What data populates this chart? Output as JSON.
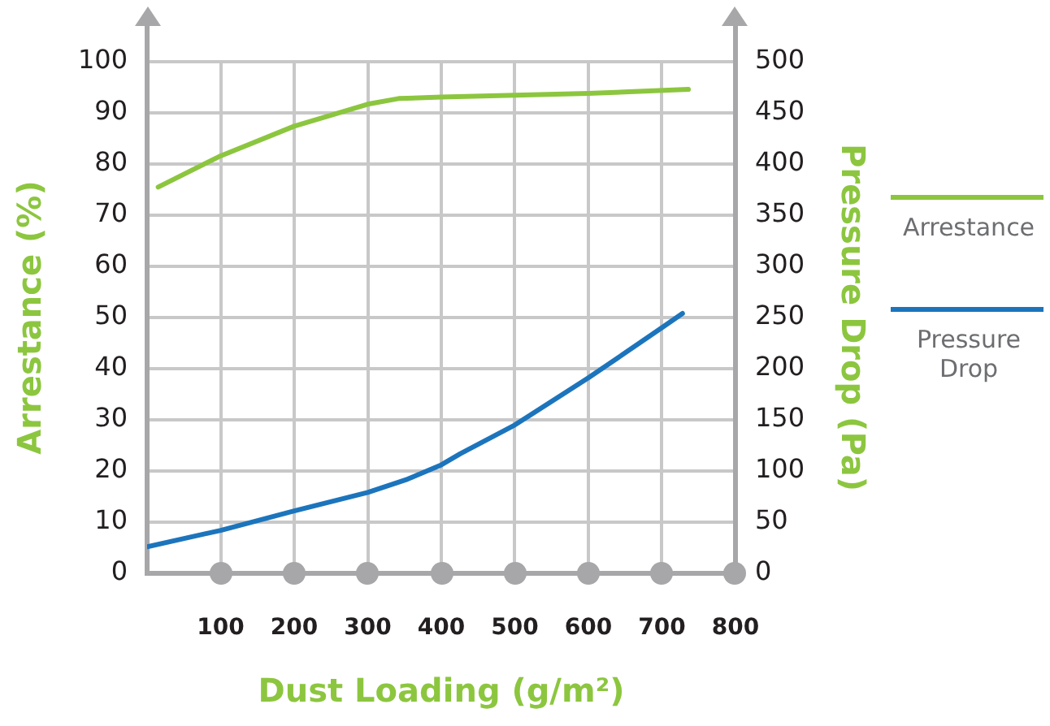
{
  "chart_data": {
    "type": "line",
    "xlabel": "Dust Loading (g/m²)",
    "ylabel": "Arrestance (%)",
    "y2label": "Pressure Drop (Pa)",
    "series": [
      {
        "name": "Arrestance",
        "color": "#8cc63f",
        "x": [
          15,
          100,
          200,
          300,
          342,
          400,
          600,
          736
        ],
        "values": [
          75.5,
          81.6,
          87.4,
          91.7,
          92.8,
          93.1,
          93.8,
          94.6
        ]
      },
      {
        "name": "Pressure Drop",
        "color": "#1c75bc",
        "axis": "y2",
        "x": [
          0,
          100,
          200,
          300,
          354,
          400,
          426,
          500,
          600,
          700,
          728
        ],
        "values": [
          26,
          42,
          61,
          79,
          92,
          106,
          117,
          145,
          191,
          240,
          254
        ]
      }
    ],
    "xlim": [
      0,
      800
    ],
    "xticks": [
      {
        "value": 0,
        "label": null
      },
      100,
      200,
      300,
      400,
      500,
      600,
      700,
      800
    ],
    "ylim": [
      0,
      100
    ],
    "yticks": [
      0,
      10,
      20,
      30,
      40,
      50,
      60,
      70,
      80,
      90,
      100
    ],
    "y2lim": [
      0,
      500
    ],
    "y2ticks": [
      0,
      50,
      100,
      150,
      200,
      250,
      300,
      350,
      400,
      450,
      500
    ],
    "grid": true,
    "legend": "right",
    "marker": "none",
    "line_style": "solid"
  }
}
